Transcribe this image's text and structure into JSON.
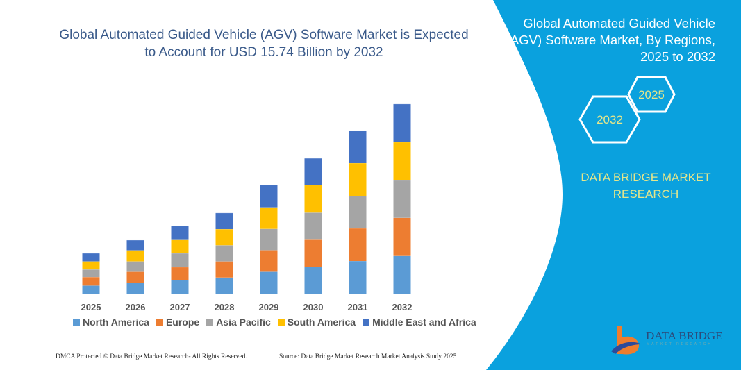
{
  "title": "Global Automated Guided Vehicle (AGV) Software Market is Expected to Account for USD 15.74 Billion by 2032",
  "side_panel": {
    "title": "Global Automated Guided Vehicle (AGV) Software Market, By Regions, 2025 to 2032",
    "hex_left": "2032",
    "hex_right": "2025",
    "brand": "DATA BRIDGE MARKET RESEARCH",
    "logo_text": "DATA BRIDGE",
    "logo_sub": "MARKET RESEARCH",
    "color": "#0aa1de"
  },
  "footer": {
    "left": "DMCA Protected © Data Bridge Market Research-  All Rights Reserved.",
    "right": "Source: Data Bridge Market Research  Market Analysis Study 2025"
  },
  "chart_data": {
    "type": "bar",
    "stacked": true,
    "title": "Global Automated Guided Vehicle (AGV) Software Market is Expected to Account for USD 15.74 Billion by 2032",
    "categories": [
      "2025",
      "2026",
      "2027",
      "2028",
      "2029",
      "2030",
      "2031",
      "2032"
    ],
    "legend_position": "bottom",
    "grid": false,
    "ylim": [
      0,
      16
    ],
    "series": [
      {
        "name": "North America",
        "color": "#5b9bd5",
        "values": [
          0.67,
          0.9,
          1.11,
          1.34,
          1.82,
          2.21,
          2.71,
          3.13
        ]
      },
      {
        "name": "Europe",
        "color": "#ed7d31",
        "values": [
          0.71,
          0.92,
          1.09,
          1.34,
          1.79,
          2.27,
          2.71,
          3.17
        ]
      },
      {
        "name": "Asia Pacific",
        "color": "#a5a5a5",
        "values": [
          0.63,
          0.86,
          1.15,
          1.34,
          1.77,
          2.25,
          2.71,
          3.11
        ]
      },
      {
        "name": "South America",
        "color": "#ffc000",
        "values": [
          0.67,
          0.92,
          1.11,
          1.34,
          1.79,
          2.3,
          2.71,
          3.17
        ]
      },
      {
        "name": "Middle East and Africa",
        "color": "#4472c4",
        "values": [
          0.67,
          0.84,
          1.15,
          1.34,
          1.86,
          2.21,
          2.71,
          3.17
        ]
      }
    ]
  }
}
